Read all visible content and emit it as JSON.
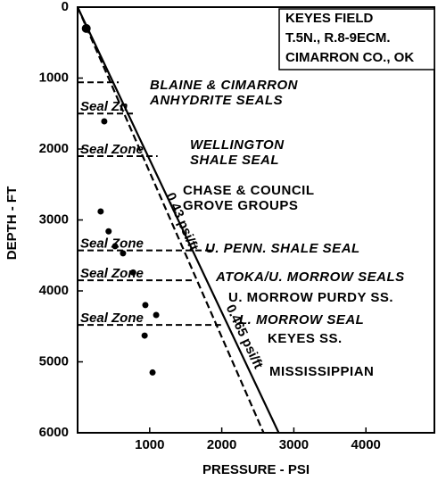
{
  "chart_data": {
    "type": "scatter",
    "box_lines": [
      "KEYES FIELD",
      "T.5N., R.8-9ECM.",
      "CIMARRON CO., OK"
    ],
    "x_label": "PRESSURE - PSI",
    "y_label": "DEPTH - FT",
    "xlim": [
      0,
      4950
    ],
    "xticks": [
      1000,
      2000,
      3000,
      4000
    ],
    "ylim": [
      0,
      6000
    ],
    "yticks": [
      0,
      1000,
      2000,
      3000,
      4000,
      5000,
      6000
    ],
    "y_inverted": true,
    "color": "#000000",
    "x": [
      120,
      370,
      320,
      430,
      520,
      630,
      770,
      940,
      1090,
      930,
      1040
    ],
    "values": [
      300,
      1610,
      2880,
      3160,
      3370,
      3470,
      3740,
      4200,
      4340,
      4630,
      5150
    ],
    "gradients": [
      {
        "name": "0.43 psi/ft",
        "x": [
          0,
          2580
        ],
        "values": [
          0,
          6000
        ],
        "dashed": true
      },
      {
        "name": "0.465 psi/ft",
        "x": [
          0,
          2790
        ],
        "values": [
          0,
          6000
        ],
        "dashed": false
      }
    ],
    "seals": [
      {
        "depth": 1060,
        "pressure_end": 570
      },
      {
        "depth": 1500,
        "pressure_end": 780,
        "label": "Seal Zn"
      },
      {
        "depth": 2100,
        "pressure_end": 1110,
        "label": "Seal Zone"
      },
      {
        "depth": 3430,
        "pressure_end": 1880,
        "label": "Seal Zone"
      },
      {
        "depth": 3850,
        "pressure_end": 1610,
        "label": "Seal Zone"
      },
      {
        "depth": 4480,
        "pressure_end": 1990,
        "label": "Seal Zone"
      }
    ],
    "annotations": [
      "BLAINE & CIMARRON",
      "ANHYDRITE SEALS",
      "WELLINGTON",
      "SHALE SEAL",
      "CHASE & COUNCIL",
      "GROVE GROUPS",
      "U. PENN. SHALE SEAL",
      "ATOKA/U. MORROW SEALS",
      "U. MORROW PURDY SS.",
      "L. MORROW SEAL",
      "KEYES SS.",
      "MISSISSIPPIAN"
    ]
  }
}
